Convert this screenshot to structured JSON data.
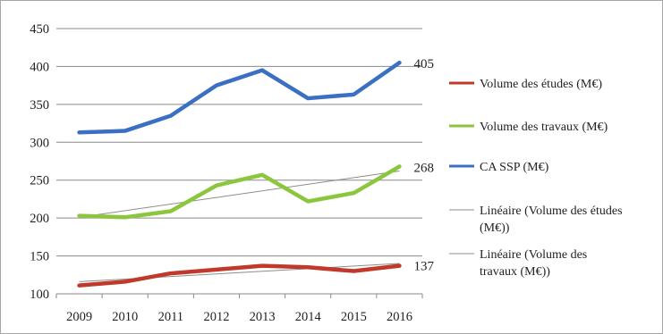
{
  "chart_data": {
    "type": "line",
    "categories": [
      "2009",
      "2010",
      "2011",
      "2012",
      "2013",
      "2014",
      "2015",
      "2016"
    ],
    "ylim": [
      100,
      450
    ],
    "yticks": [
      100,
      150,
      200,
      250,
      300,
      350,
      400,
      450
    ],
    "grid": true,
    "legend_position": "right",
    "series": [
      {
        "name": "Volume des études (M€)",
        "color": "#c0392b",
        "values": [
          111,
          116,
          127,
          132,
          137,
          135,
          130,
          137
        ],
        "end_label": "137"
      },
      {
        "name": "Volume des travaux (M€)",
        "color": "#8cc63e",
        "values": [
          203,
          201,
          209,
          243,
          257,
          222,
          233,
          268
        ],
        "end_label": "268"
      },
      {
        "name": "CA SSP (M€)",
        "color": "#3a6fc4",
        "values": [
          313,
          315,
          335,
          375,
          395,
          358,
          363,
          405
        ],
        "end_label": "405"
      }
    ],
    "trendlines": [
      {
        "name": "Linéaire (Volume des études (M€))",
        "legend_lines": [
          "Linéaire (Volume des études",
          "(M€))"
        ],
        "color": "#8c8c8c",
        "start": 116,
        "end": 140
      },
      {
        "name": "Linéaire (Volume des travaux (M€))",
        "legend_lines": [
          "Linéaire (Volume des",
          "travaux (M€))"
        ],
        "color": "#8c8c8c",
        "start": 201,
        "end": 262
      }
    ]
  }
}
